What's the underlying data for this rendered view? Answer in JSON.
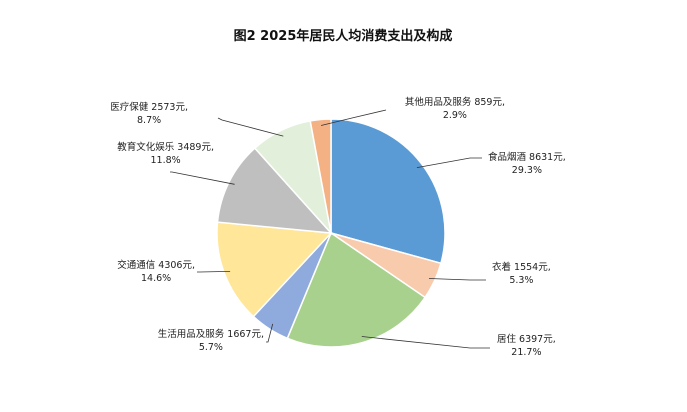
{
  "chart_data": {
    "type": "pie",
    "title": "图2  2025年居民人均消费支出及构成",
    "unit": "元",
    "slices": [
      {
        "name": "食品烟酒",
        "value": 8631,
        "percent": 29.3,
        "color": "#5b9bd5"
      },
      {
        "name": "衣着",
        "value": 1554,
        "percent": 5.3,
        "color": "#f8cbad"
      },
      {
        "name": "居住",
        "value": 6397,
        "percent": 21.7,
        "color": "#a9d18e"
      },
      {
        "name": "生活用品及服务",
        "value": 1667,
        "percent": 5.7,
        "color": "#8faadc"
      },
      {
        "name": "交通通信",
        "value": 4306,
        "percent": 14.6,
        "color": "#ffe699"
      },
      {
        "name": "教育文化娱乐",
        "value": 3489,
        "percent": 11.8,
        "color": "#bfbfbf"
      },
      {
        "name": "医疗保健",
        "value": 2573,
        "percent": 8.7,
        "color": "#e2efda"
      },
      {
        "name": "其他用品及服务",
        "value": 859,
        "percent": 2.9,
        "color": "#f4b183"
      }
    ],
    "labels": [
      {
        "line1": "食品烟酒 8631元,",
        "line2": "29.3%"
      },
      {
        "line1": "衣着 1554元,",
        "line2": "5.3%"
      },
      {
        "line1": "居住 6397元,",
        "line2": "21.7%"
      },
      {
        "line1": "生活用品及服务 1667元,",
        "line2": "5.7%"
      },
      {
        "line1": "交通通信 4306元,",
        "line2": "14.6%"
      },
      {
        "line1": "教育文化娱乐 3489元,",
        "line2": "11.8%"
      },
      {
        "line1": "医疗保健 2573元,",
        "line2": "8.7%"
      },
      {
        "line1": "其他用品及服务 859元,",
        "line2": "2.9%"
      }
    ]
  }
}
